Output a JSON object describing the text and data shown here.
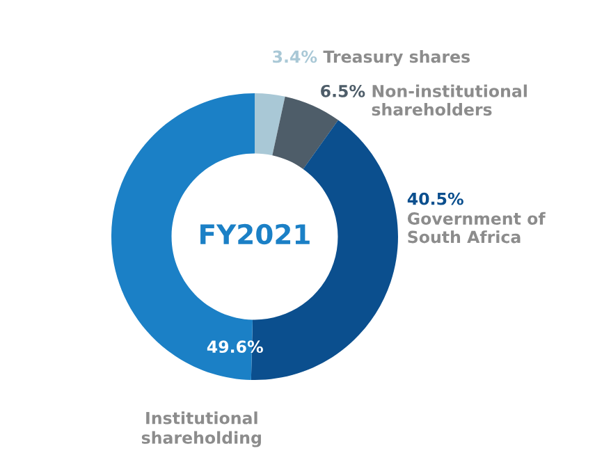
{
  "chart_data": {
    "type": "donut",
    "title": "FY2021",
    "categories": [
      "Treasury shares",
      "Non-institutional shareholders",
      "Government of South Africa",
      "Institutional shareholding"
    ],
    "values": [
      3.4,
      6.5,
      40.5,
      49.6
    ],
    "colors": [
      "#a9c8d6",
      "#4e5d69",
      "#0b4f8e",
      "#1b80c6"
    ],
    "value_labels": [
      "3.4%",
      "6.5%",
      "40.5%",
      "49.6%"
    ],
    "legend": false
  }
}
